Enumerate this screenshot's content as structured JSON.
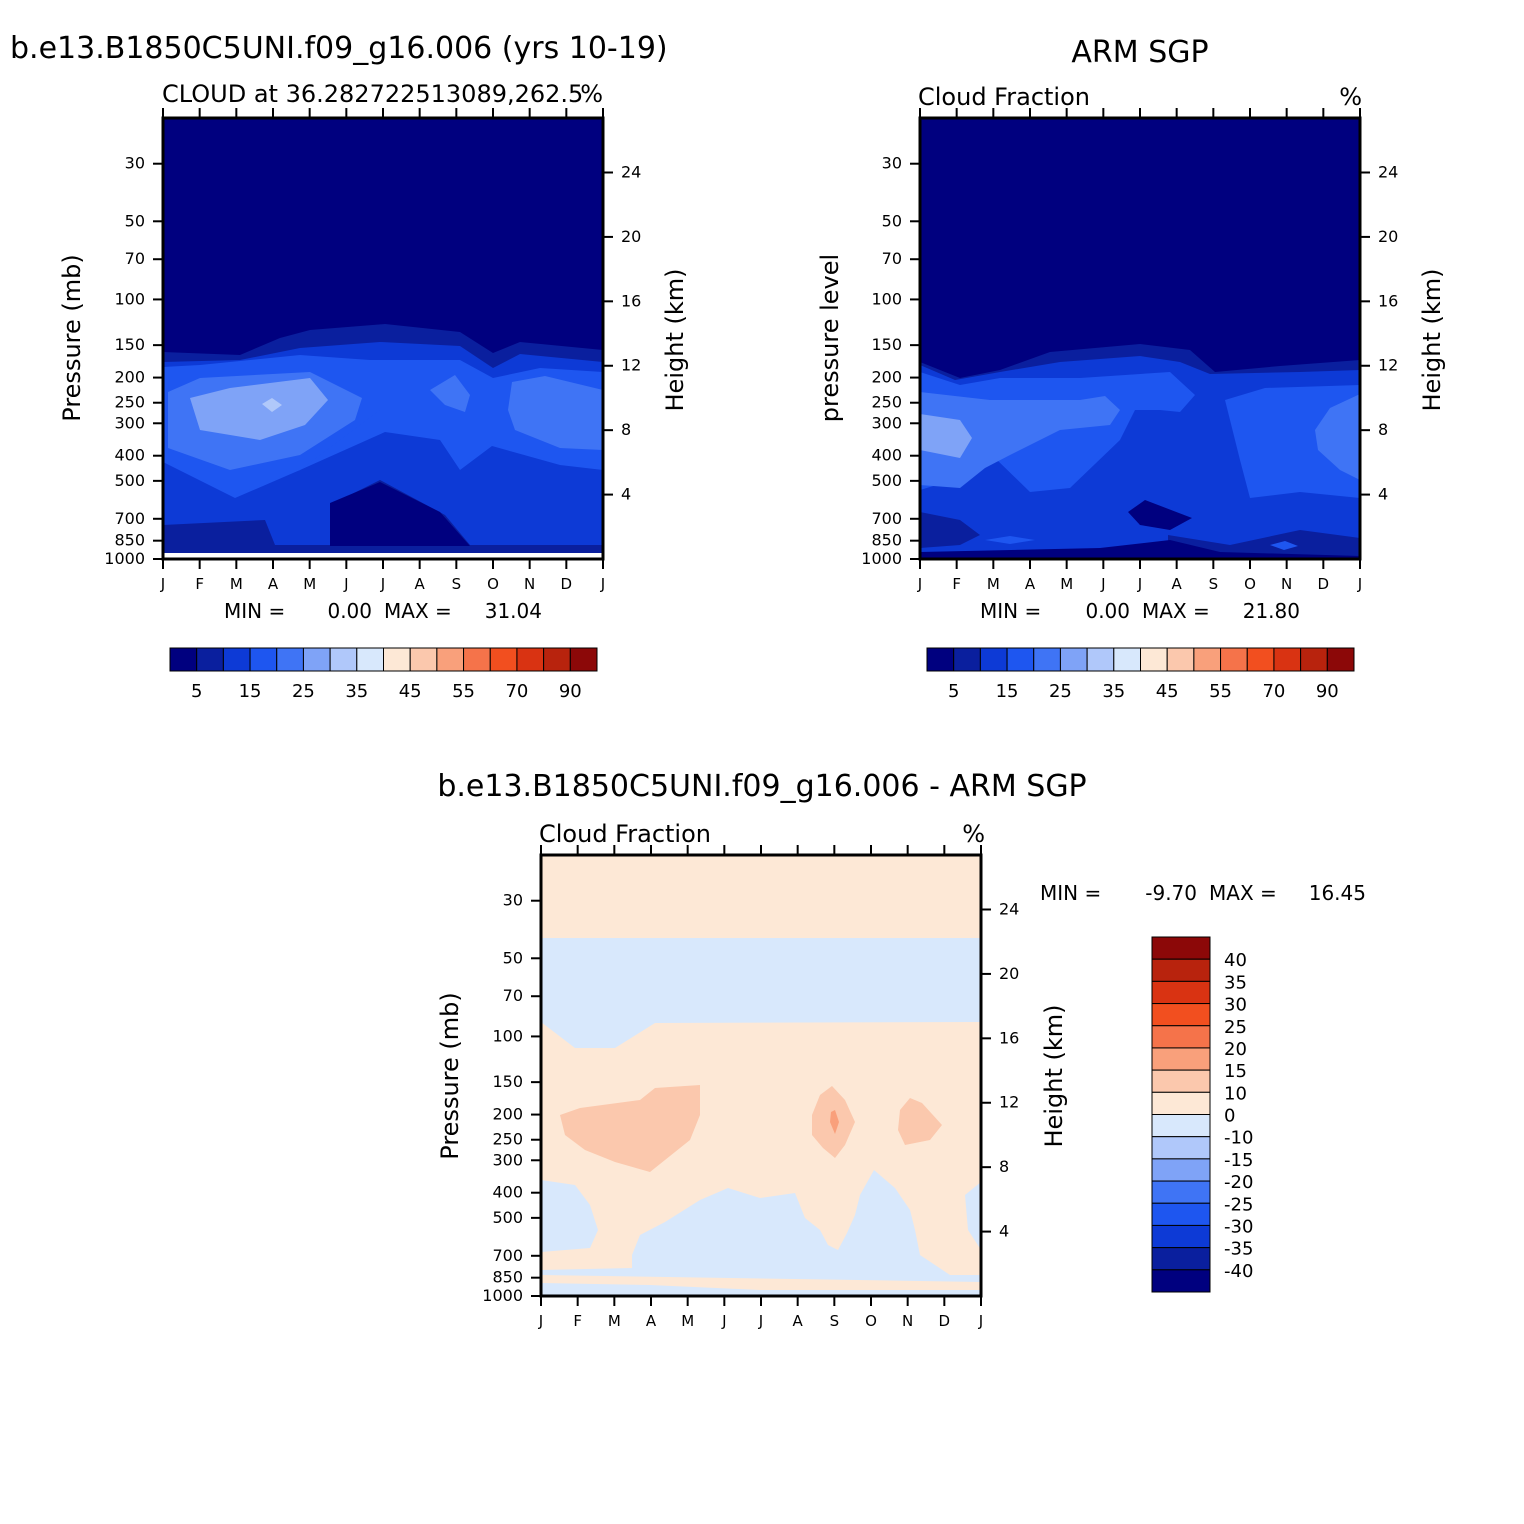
{
  "panels": [
    {
      "id": "model",
      "title": "b.e13.B1850C5UNI.f09_g16.006 (yrs 10-19)",
      "subtitle_left": "CLOUD at 36.282722513089,262.5",
      "subtitle_right": "%",
      "ylabel_left": "Pressure (mb)",
      "ylabel_right": "Height (km)",
      "stats": {
        "min_label": "MIN =",
        "min": "0.00",
        "max_label": "MAX =",
        "max": "31.04"
      }
    },
    {
      "id": "obs",
      "title": "ARM SGP",
      "subtitle_left": "Cloud Fraction",
      "subtitle_right": "%",
      "ylabel_left": "pressure level",
      "ylabel_right": "Height (km)",
      "stats": {
        "min_label": "MIN =",
        "min": "0.00",
        "max_label": "MAX =",
        "max": "21.80"
      }
    },
    {
      "id": "diff",
      "title": "b.e13.B1850C5UNI.f09_g16.006 - ARM SGP",
      "subtitle_left": "Cloud Fraction",
      "subtitle_right": "%",
      "ylabel_left": "Pressure (mb)",
      "ylabel_right": "Height (km)",
      "stats": {
        "min_label": "MIN =",
        "min": "-9.70",
        "max_label": "MAX =",
        "max": "16.45"
      }
    }
  ],
  "chart_data": [
    {
      "type": "heatmap",
      "title": "b.e13.B1850C5UNI.f09_g16.006 (yrs 10-19)",
      "variable": "CLOUD",
      "units": "%",
      "x": [
        "J",
        "F",
        "M",
        "A",
        "M",
        "J",
        "J",
        "A",
        "S",
        "O",
        "N",
        "D",
        "J"
      ],
      "y_pressure_ticks": [
        30,
        50,
        70,
        100,
        150,
        200,
        250,
        300,
        400,
        500,
        700,
        850,
        1000
      ],
      "y_height_ticks_km": [
        24,
        20,
        16,
        12,
        8,
        4
      ],
      "ylim_pressure": [
        20,
        1000
      ],
      "levels": [
        5,
        10,
        15,
        20,
        25,
        30,
        35,
        40,
        45,
        50,
        55,
        60,
        70,
        80,
        90
      ],
      "z_min": 0.0,
      "z_max": 31.04,
      "summary": "Cloud fraction < 5% above ~200 mb; maximum 25-31% near 250-300 mb in spring (Mar-Apr) and autumn (Oct-Nov); minimum < 5% in the lower troposphere (500-850 mb) in Jun-Aug."
    },
    {
      "type": "heatmap",
      "title": "ARM SGP",
      "variable": "Cloud Fraction",
      "units": "%",
      "x": [
        "J",
        "F",
        "M",
        "A",
        "M",
        "J",
        "J",
        "A",
        "S",
        "O",
        "N",
        "D",
        "J"
      ],
      "y_pressure_ticks": [
        30,
        50,
        70,
        100,
        150,
        200,
        250,
        300,
        400,
        500,
        700,
        850,
        1000
      ],
      "y_height_ticks_km": [
        24,
        20,
        16,
        12,
        8,
        4
      ],
      "ylim_pressure": [
        20,
        1000
      ],
      "levels": [
        5,
        10,
        15,
        20,
        25,
        30,
        35,
        40,
        45,
        50,
        55,
        60,
        70,
        80,
        90
      ],
      "z_min": 0.0,
      "z_max": 21.8,
      "summary": "Cloud fraction < 5% above ~200 mb; 15-22% at 250-400 mb in Jan-Mar and 10-20% from May to Aug aloft; lower values below 500 mb, minimum < 5% near 700 mb in Jul-Aug."
    },
    {
      "type": "heatmap",
      "title": "b.e13.B1850C5UNI.f09_g16.006 - ARM SGP",
      "variable": "Cloud Fraction",
      "units": "%",
      "x": [
        "J",
        "F",
        "M",
        "A",
        "M",
        "J",
        "J",
        "A",
        "S",
        "O",
        "N",
        "D",
        "J"
      ],
      "y_pressure_ticks": [
        30,
        50,
        70,
        100,
        150,
        200,
        250,
        300,
        400,
        500,
        700,
        850,
        1000
      ],
      "y_height_ticks_km": [
        24,
        20,
        16,
        12,
        8,
        4
      ],
      "ylim_pressure": [
        20,
        1000
      ],
      "levels": [
        -40,
        -35,
        -30,
        -25,
        -20,
        -15,
        -10,
        0,
        10,
        15,
        20,
        25,
        30,
        35,
        40
      ],
      "z_min": -9.7,
      "z_max": 16.45,
      "summary": "Differences 0 to 10 over most of the domain; -10 to 0 between 50 and 100 mb and in the lower troposphere (400-1000 mb); 10 to 15 near 200-300 mb in Mar-May, Sep and Nov."
    }
  ],
  "colorbars": {
    "horizontal_labels": [
      "5",
      "15",
      "25",
      "35",
      "45",
      "55",
      "70",
      "90"
    ],
    "vertical_labels": [
      "40",
      "35",
      "30",
      "25",
      "20",
      "15",
      "10",
      "0",
      "-10",
      "-15",
      "-20",
      "-25",
      "-30",
      "-35",
      "-40"
    ],
    "colors": [
      "#00007f",
      "#0a1f9e",
      "#0d3ad6",
      "#1e56f0",
      "#3f74f5",
      "#7fa3f7",
      "#b0c8fa",
      "#d8e8fc",
      "#fde8d6",
      "#fbc8ad",
      "#f9a07b",
      "#f5734a",
      "#f24f1f",
      "#d93312",
      "#b8230d",
      "#8c0808"
    ]
  }
}
